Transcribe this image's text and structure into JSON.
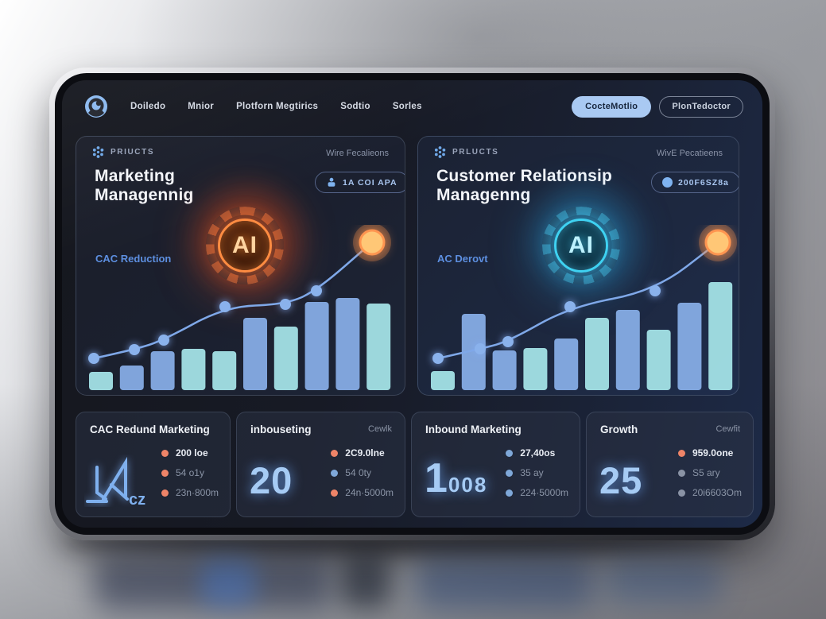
{
  "colors": {
    "accent_orange": "#ff7a3d",
    "accent_cyan": "#35c8e8",
    "bar_blue": "#86ace5",
    "bar_cyan": "#a3e2e6",
    "line": "#7fa8e8",
    "endpoint_fill": "#ffc776",
    "endpoint_ring": "#ff9550",
    "dot_orange": "#ee8468",
    "dot_blue": "#7fa8d9",
    "dot_gray": "#8a93a5",
    "button_fill": "#a9c9f2"
  },
  "nav": {
    "items": [
      "Doiledo",
      "Mnior",
      "Plotforn Megtirics",
      "Sodtio",
      "Sorles"
    ],
    "primary_button": "CocteMotlio",
    "secondary_button": "PlonTedoctor"
  },
  "panels": [
    {
      "eyebrow": "PRIUCTS",
      "header_link": "Wire Fecalieons",
      "title_line1": "Marketing",
      "title_line2": "Managennig",
      "badge_label": "1A COI APA",
      "metric_label": "CAC Reduction",
      "ai_label": "AI"
    },
    {
      "eyebrow": "PRLUCTS",
      "header_link": "WivE Pecatieens",
      "title_line1": "Customer Relationsip",
      "title_line2": "Managenng",
      "badge_label": "200F6SZ8a",
      "metric_label": "AC Derovt",
      "ai_label": "AI"
    }
  ],
  "cards": [
    {
      "title": "CAC Redund Marketing",
      "corner_label": "",
      "glyph": "14cz",
      "glyph_sub": "cz",
      "legend": [
        {
          "dot": "orange",
          "text": "200 loe",
          "bold": true
        },
        {
          "dot": "orange",
          "text": "54 o1y",
          "bold": false
        },
        {
          "dot": "orange",
          "text": "23n·800m",
          "bold": false
        }
      ]
    },
    {
      "title": "inbouseting",
      "corner_label": "Cewlk",
      "big_value": "20",
      "legend": [
        {
          "dot": "orange",
          "text": "2C9.0lne",
          "bold": true
        },
        {
          "dot": "blue",
          "text": "54 0ty",
          "bold": false
        },
        {
          "dot": "orange",
          "text": "24n·5000m",
          "bold": false
        }
      ]
    },
    {
      "title": "Inbound Marketing",
      "corner_label": "",
      "big_value": "1",
      "big_value_sub": "008",
      "legend": [
        {
          "dot": "blue",
          "text": "27,40os",
          "bold": true
        },
        {
          "dot": "blue",
          "text": "35 ay",
          "bold": false
        },
        {
          "dot": "blue",
          "text": "224·5000m",
          "bold": false
        }
      ]
    },
    {
      "title": "Growth",
      "corner_label": "Cewfit",
      "big_value": "25",
      "legend": [
        {
          "dot": "orange",
          "text": "959.0one",
          "bold": true
        },
        {
          "dot": "gray",
          "text": "S5 ary",
          "bold": false
        },
        {
          "dot": "gray",
          "text": "20i6603Om",
          "bold": false
        }
      ]
    }
  ],
  "chart_data": [
    {
      "type": "bar",
      "title": "Marketing Managennig trend",
      "note": "10 bars rising left to right with overlaid line ending in glowing orange marker",
      "bars": [
        {
          "v": 23,
          "c": "cyan"
        },
        {
          "v": 31,
          "c": "blue"
        },
        {
          "v": 49,
          "c": "blue"
        },
        {
          "v": 52,
          "c": "cyan"
        },
        {
          "v": 49,
          "c": "cyan"
        },
        {
          "v": 91,
          "c": "blue"
        },
        {
          "v": 80,
          "c": "cyan"
        },
        {
          "v": 111,
          "c": "blue"
        },
        {
          "v": 116,
          "c": "blue"
        },
        {
          "v": 109,
          "c": "cyan"
        }
      ],
      "line": [
        [
          14,
          168
        ],
        [
          65,
          157
        ],
        [
          102,
          145
        ],
        [
          179,
          103
        ],
        [
          255,
          100
        ],
        [
          294,
          83
        ]
      ],
      "endpoint": [
        364,
        22
      ]
    },
    {
      "type": "bar",
      "title": "Customer Relationsip trend",
      "note": "10 bars with overlaid line ending in glowing orange marker",
      "bars": [
        {
          "v": 24,
          "c": "cyan"
        },
        {
          "v": 96,
          "c": "blue"
        },
        {
          "v": 50,
          "c": "blue"
        },
        {
          "v": 53,
          "c": "cyan"
        },
        {
          "v": 65,
          "c": "blue"
        },
        {
          "v": 91,
          "c": "cyan"
        },
        {
          "v": 101,
          "c": "blue"
        },
        {
          "v": 76,
          "c": "cyan"
        },
        {
          "v": 110,
          "c": "blue"
        },
        {
          "v": 136,
          "c": "cyan"
        }
      ],
      "line": [
        [
          17,
          168
        ],
        [
          70,
          156
        ],
        [
          105,
          147
        ],
        [
          183,
          103
        ],
        [
          290,
          83
        ]
      ],
      "endpoint": [
        369,
        22
      ]
    }
  ]
}
